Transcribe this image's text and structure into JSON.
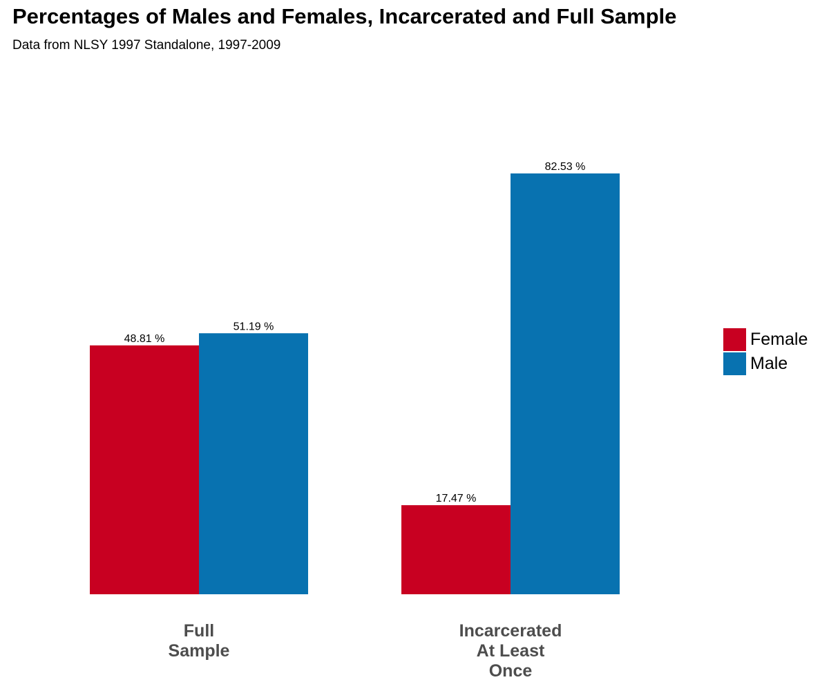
{
  "chart_data": {
    "type": "bar",
    "title": "Percentages of Males and Females, Incarcerated and Full Sample",
    "subtitle": "Data from NLSY 1997 Standalone, 1997-2009",
    "categories": [
      [
        "Full",
        "Sample"
      ],
      [
        "Incarcerated",
        "At Least",
        "Once"
      ]
    ],
    "series": [
      {
        "name": "Female",
        "color": "#C80021",
        "values": [
          48.81,
          17.47
        ],
        "labels": [
          "48.81 %",
          "17.47 %"
        ]
      },
      {
        "name": "Male",
        "color": "#0872B0",
        "values": [
          51.19,
          82.53
        ],
        "labels": [
          "51.19 %",
          "82.53 %"
        ]
      }
    ],
    "ylim": [
      0,
      82.53
    ],
    "grid": false,
    "y_axis_visible": false,
    "legend_placement": "right"
  }
}
